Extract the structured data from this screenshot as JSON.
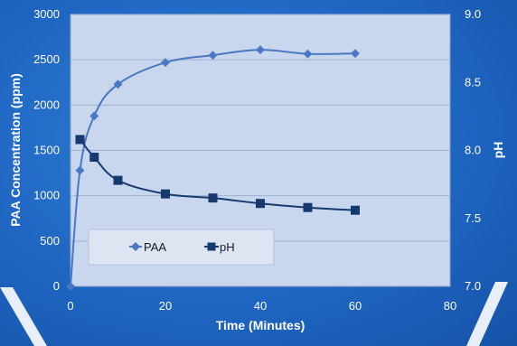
{
  "chart_data": {
    "type": "line",
    "xlabel": "Time (Minutes)",
    "ylabel": "PAA Concentration (ppm)",
    "y2label": "pH",
    "xlim": [
      0,
      80
    ],
    "ylim": [
      0,
      3000
    ],
    "y2lim": [
      7.0,
      9.0
    ],
    "x_ticks": [
      0,
      20,
      40,
      60,
      80
    ],
    "y_ticks": [
      0,
      500,
      1000,
      1500,
      2000,
      2500,
      3000
    ],
    "y2_ticks": [
      "7.0",
      "7.5",
      "8.0",
      "8.5",
      "9.0"
    ],
    "grid": "horizontal",
    "legend_position": "lower-left",
    "series": [
      {
        "name": "PAA",
        "axis": "left",
        "marker": "diamond",
        "color": "#4a78c2",
        "x": [
          0,
          2,
          5,
          10,
          20,
          30,
          40,
          50,
          60
        ],
        "y": [
          0,
          1280,
          1880,
          2230,
          2470,
          2550,
          2610,
          2565,
          2570
        ]
      },
      {
        "name": "pH",
        "axis": "right",
        "marker": "square",
        "color": "#173a6e",
        "x": [
          2,
          5,
          10,
          20,
          30,
          40,
          50,
          60
        ],
        "y": [
          8.08,
          7.95,
          7.78,
          7.68,
          7.65,
          7.61,
          7.58,
          7.56
        ]
      }
    ]
  }
}
